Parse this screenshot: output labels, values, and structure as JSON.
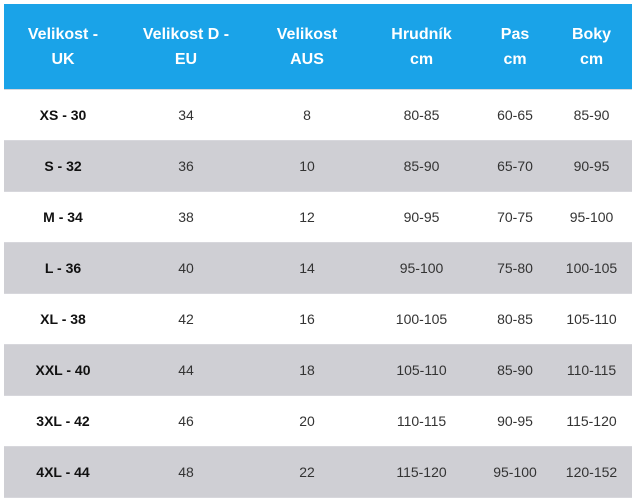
{
  "table": {
    "headers": [
      {
        "line1": "Velikost -",
        "line2": "UK"
      },
      {
        "line1": "Velikost D -",
        "line2": "EU"
      },
      {
        "line1": "Velikost",
        "line2": "AUS"
      },
      {
        "line1": "Hrudník",
        "line2": "cm"
      },
      {
        "line1": "Pas",
        "line2": "cm"
      },
      {
        "line1": "Boky",
        "line2": "cm"
      }
    ],
    "rows": [
      [
        "XS - 30",
        "34",
        "8",
        "80-85",
        "60-65",
        "85-90"
      ],
      [
        "S - 32",
        "36",
        "10",
        "85-90",
        "65-70",
        "90-95"
      ],
      [
        "M - 34",
        "38",
        "12",
        "90-95",
        "70-75",
        "95-100"
      ],
      [
        "L - 36",
        "40",
        "14",
        "95-100",
        "75-80",
        "100-105"
      ],
      [
        "XL - 38",
        "42",
        "16",
        "100-105",
        "80-85",
        "105-110"
      ],
      [
        "XXL - 40",
        "44",
        "18",
        "105-110",
        "85-90",
        "110-115"
      ],
      [
        "3XL - 42",
        "46",
        "20",
        "110-115",
        "90-95",
        "115-120"
      ],
      [
        "4XL - 44",
        "48",
        "22",
        "115-120",
        "95-100",
        "120-152"
      ]
    ]
  },
  "colors": {
    "header_bg": "#1aa3e8",
    "header_text": "#ffffff",
    "stripe_bg": "#cfcfd4",
    "row_bg": "#ffffff"
  }
}
